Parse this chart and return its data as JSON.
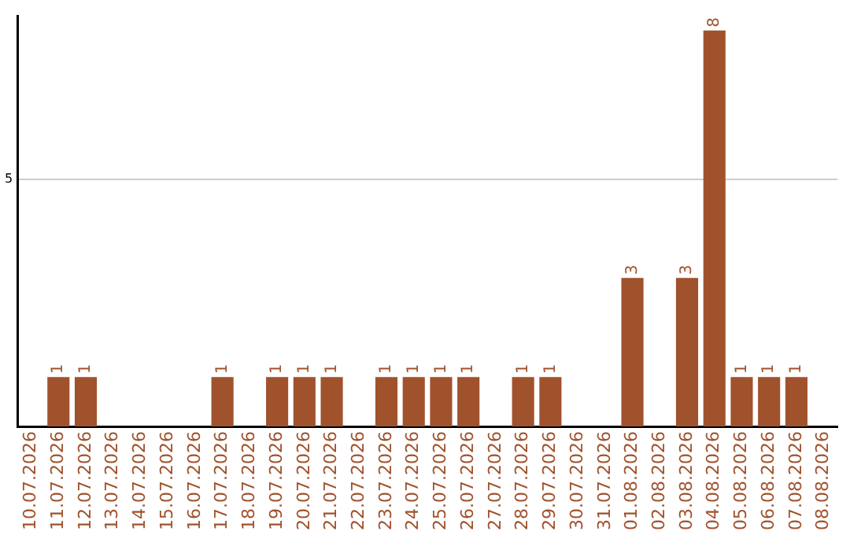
{
  "chart_data": {
    "type": "bar",
    "categories": [
      "10.07.2026",
      "11.07.2026",
      "12.07.2026",
      "13.07.2026",
      "14.07.2026",
      "15.07.2026",
      "16.07.2026",
      "17.07.2026",
      "18.07.2026",
      "19.07.2026",
      "20.07.2026",
      "21.07.2026",
      "22.07.2026",
      "23.07.2026",
      "24.07.2026",
      "25.07.2026",
      "26.07.2026",
      "27.07.2026",
      "28.07.2026",
      "29.07.2026",
      "30.07.2026",
      "31.07.2026",
      "01.08.2026",
      "02.08.2026",
      "03.08.2026",
      "04.08.2026",
      "05.08.2026",
      "06.08.2026",
      "07.08.2026",
      "08.08.2026"
    ],
    "values": [
      0,
      1,
      1,
      0,
      0,
      0,
      0,
      1,
      0,
      1,
      1,
      1,
      0,
      1,
      1,
      1,
      1,
      0,
      1,
      1,
      0,
      0,
      3,
      0,
      3,
      8,
      1,
      1,
      1,
      0
    ],
    "value_labels": [
      null,
      "1",
      "1",
      null,
      null,
      null,
      null,
      "1",
      null,
      "1",
      "1",
      "1",
      null,
      "1",
      "1",
      "1",
      "1",
      null,
      "1",
      "1",
      null,
      null,
      "3",
      null,
      "3",
      "8",
      "1",
      "1",
      "1",
      null
    ],
    "color": "#a0522d",
    "ylim": [
      0,
      8.3
    ],
    "yticks": [
      5
    ],
    "grid": "y",
    "legend": false
  }
}
